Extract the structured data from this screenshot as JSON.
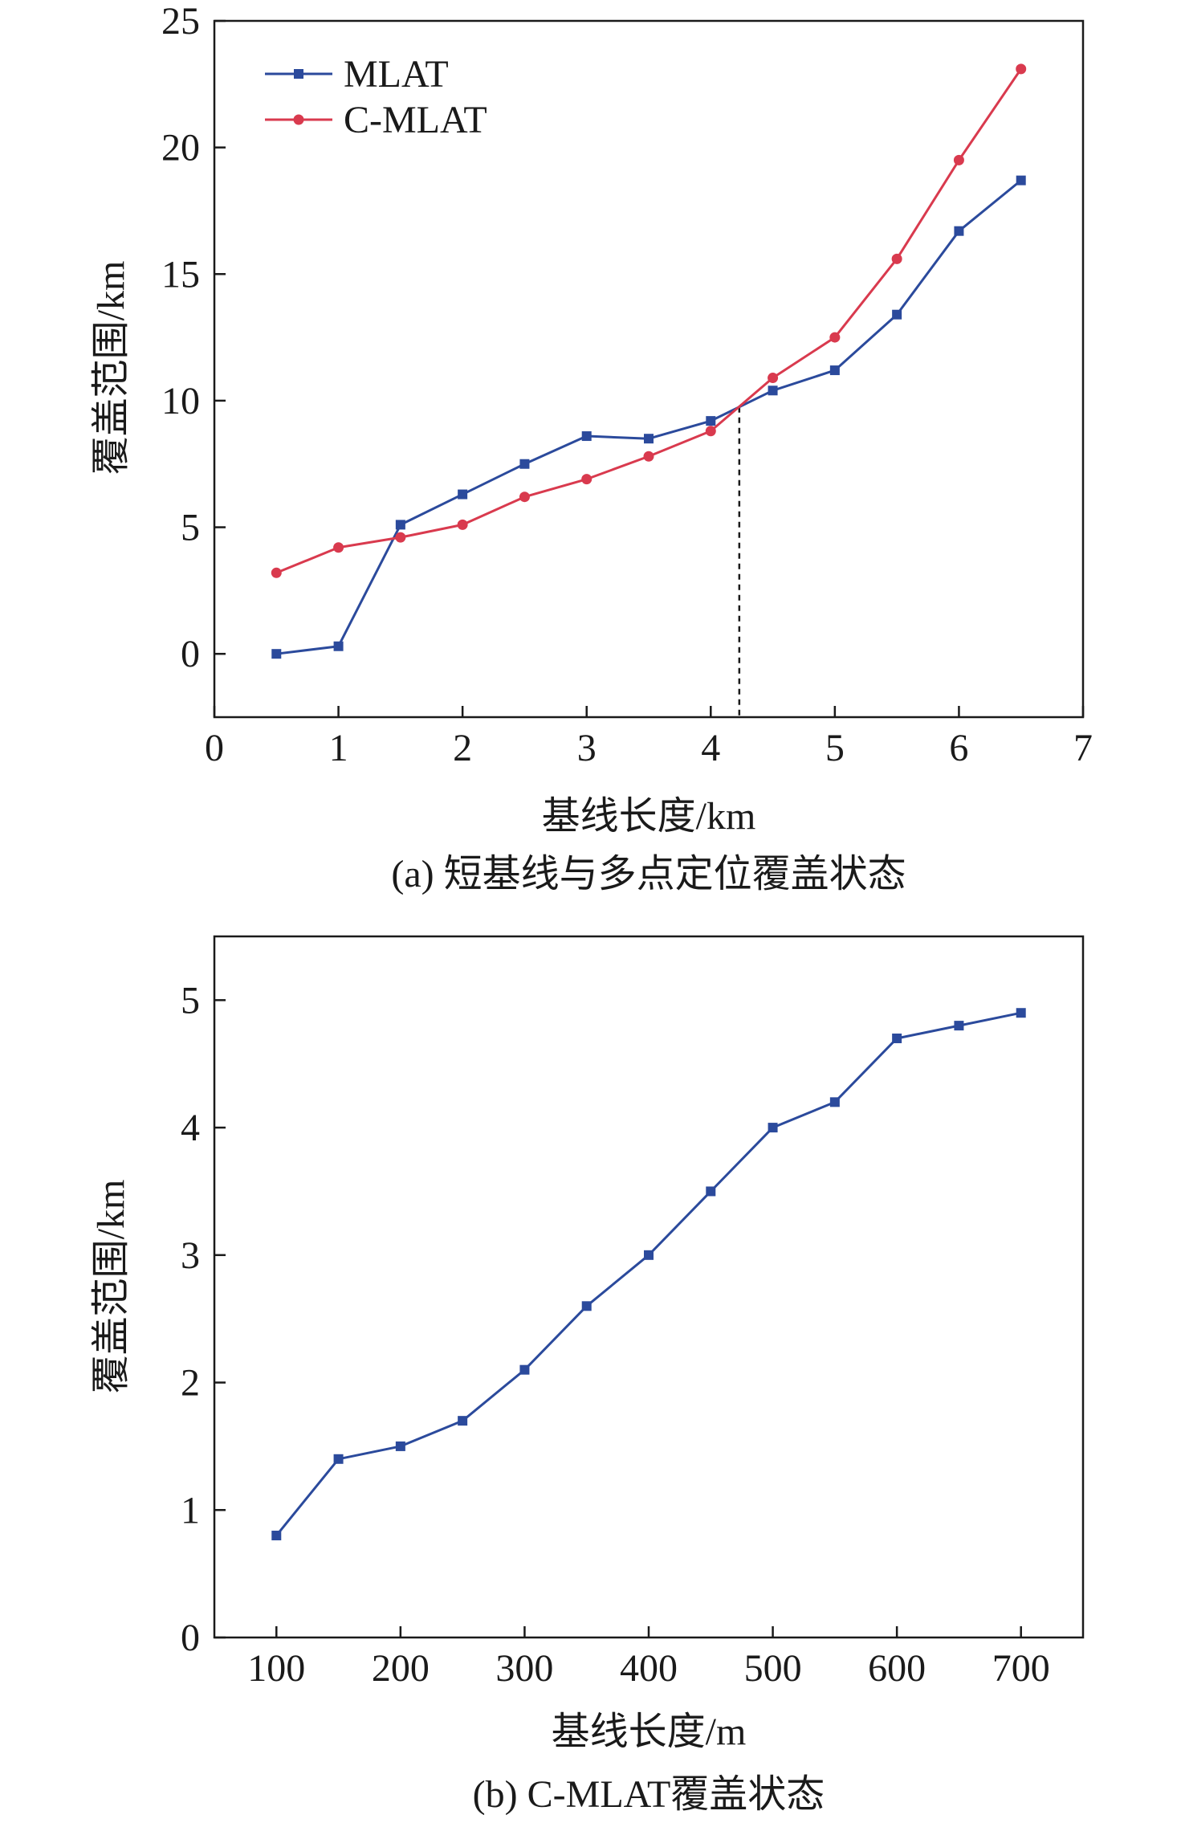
{
  "chart_data": [
    {
      "type": "line",
      "panel": "a",
      "caption": "(a) 短基线与多点定位覆盖状态",
      "xlabel": "基线长度/km",
      "ylabel": "覆盖范围/km",
      "xlim": [
        0,
        7
      ],
      "ylim": [
        -2.5,
        25
      ],
      "xticks": [
        0,
        1,
        2,
        3,
        4,
        5,
        6,
        7
      ],
      "yticks": [
        0,
        5,
        10,
        15,
        20,
        25
      ],
      "legend": "top-left",
      "grid": false,
      "crossover_x": 4.23,
      "x": [
        0.5,
        1,
        1.5,
        2,
        2.5,
        3,
        3.5,
        4,
        4.5,
        5,
        5.5,
        6,
        6.5
      ],
      "series": [
        {
          "name": "MLAT",
          "color": "#2b4a9c",
          "marker": "square",
          "values": [
            0,
            0.3,
            5.1,
            6.3,
            7.5,
            8.6,
            8.5,
            9.2,
            10.4,
            11.2,
            13.4,
            16.7,
            18.7
          ]
        },
        {
          "name": "C-MLAT",
          "color": "#d93a4e",
          "marker": "circle",
          "values": [
            3.2,
            4.2,
            4.6,
            5.1,
            6.2,
            6.9,
            7.8,
            8.8,
            10.9,
            12.5,
            15.6,
            19.5,
            23.1
          ]
        }
      ]
    },
    {
      "type": "line",
      "panel": "b",
      "caption": "(b) C-MLAT覆盖状态",
      "xlabel": "基线长度/m",
      "ylabel": "覆盖范围/km",
      "xlim": [
        50,
        750
      ],
      "ylim": [
        0,
        5.5
      ],
      "xticks": [
        100,
        200,
        300,
        400,
        500,
        600,
        700
      ],
      "yticks": [
        0,
        1,
        2,
        3,
        4,
        5
      ],
      "grid": false,
      "x": [
        100,
        150,
        200,
        250,
        300,
        350,
        400,
        450,
        500,
        550,
        600,
        650,
        700
      ],
      "series": [
        {
          "color": "#2b4a9c",
          "marker": "square",
          "values": [
            0.8,
            1.4,
            1.5,
            1.7,
            2.1,
            2.6,
            3.0,
            3.5,
            4.0,
            4.2,
            4.7,
            4.8,
            4.9
          ]
        }
      ]
    }
  ]
}
